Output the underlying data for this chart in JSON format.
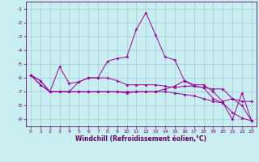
{
  "xlabel": "Windchill (Refroidissement éolien,°C)",
  "bg_color": "#c8eef0",
  "grid_color": "#a0c8d8",
  "line_color": "#990099",
  "x": [
    0,
    1,
    2,
    3,
    4,
    5,
    6,
    7,
    8,
    9,
    10,
    11,
    12,
    13,
    14,
    15,
    16,
    17,
    18,
    19,
    20,
    21,
    22,
    23
  ],
  "series1": [
    -5.8,
    -6.2,
    -7.0,
    -5.2,
    -6.4,
    -6.3,
    -6.0,
    -6.0,
    -4.8,
    -4.6,
    -4.5,
    -2.5,
    -1.3,
    -2.9,
    -4.5,
    -4.7,
    -6.2,
    -6.6,
    -6.7,
    -7.5,
    -7.8,
    -9.0,
    -7.1,
    -9.1
  ],
  "series2": [
    -5.8,
    -6.2,
    -7.0,
    -7.0,
    -7.0,
    -6.3,
    -6.0,
    -6.0,
    -6.0,
    -6.2,
    -6.5,
    -6.5,
    -6.5,
    -6.5,
    -6.6,
    -6.7,
    -6.6,
    -6.6,
    -6.7,
    -6.8,
    -6.8,
    -7.5,
    -7.7,
    -7.7
  ],
  "series3": [
    -5.8,
    -6.5,
    -7.0,
    -7.0,
    -7.0,
    -7.0,
    -7.0,
    -7.0,
    -7.0,
    -7.0,
    -7.0,
    -7.0,
    -7.0,
    -7.0,
    -7.0,
    -7.1,
    -7.2,
    -7.3,
    -7.5,
    -7.7,
    -7.8,
    -8.5,
    -8.9,
    -9.1
  ],
  "series4": [
    -5.8,
    -6.5,
    -7.0,
    -7.0,
    -7.0,
    -7.0,
    -7.0,
    -7.0,
    -7.0,
    -7.0,
    -7.1,
    -7.0,
    -7.0,
    -7.0,
    -6.8,
    -6.6,
    -6.2,
    -6.5,
    -6.5,
    -7.0,
    -7.7,
    -7.5,
    -8.0,
    -9.1
  ],
  "ylim": [
    -9.5,
    -0.5
  ],
  "yticks": [
    -9,
    -8,
    -7,
    -6,
    -5,
    -4,
    -3,
    -2,
    -1
  ],
  "xlim": [
    -0.5,
    23.5
  ],
  "xticks": [
    0,
    1,
    2,
    3,
    4,
    5,
    6,
    7,
    8,
    9,
    10,
    11,
    12,
    13,
    14,
    15,
    16,
    17,
    18,
    19,
    20,
    21,
    22,
    23
  ],
  "tick_fontsize": 4.5,
  "xlabel_fontsize": 5.5,
  "linewidth": 0.7,
  "markersize": 2.5
}
